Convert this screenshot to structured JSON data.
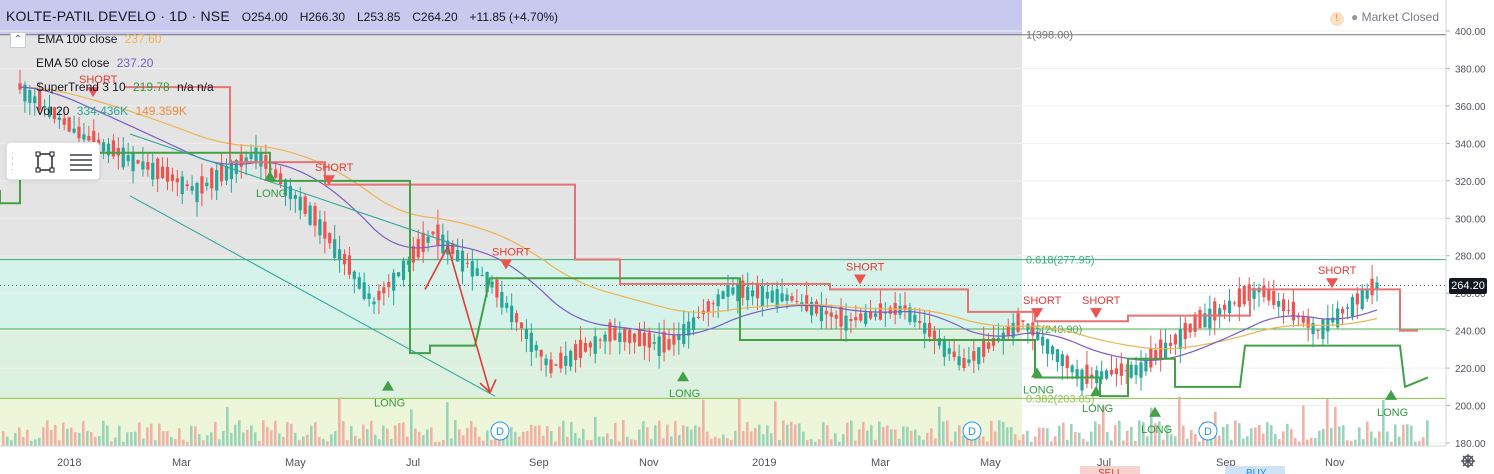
{
  "header": {
    "symbol": "KOLTE-PATIL DEVELO · 1D · NSE",
    "open": "O254.00",
    "high": "H266.30",
    "low": "L253.85",
    "close": "C264.20",
    "change": "+11.85 (+4.70%)"
  },
  "market_status": "Market Closed",
  "legend": [
    {
      "name": "EMA 100 close",
      "value": "237.60",
      "color": "#f0b351"
    },
    {
      "name": "EMA 50 close",
      "value": "237.20",
      "color": "#7b5cc9"
    },
    {
      "name": "SuperTrend 3 10",
      "value": "219.78",
      "extra": "n/a n/a",
      "color": "#2e9c3f"
    },
    {
      "name": "Vol 20",
      "value": "334.436K",
      "extra": "149.359K",
      "color": "#26a69a",
      "extra_color": "#ef8a3a"
    }
  ],
  "current_price": "264.20",
  "chart_data": {
    "type": "candlestick",
    "symbol": "KOLTE-PATIL DEVELO",
    "interval": "1D",
    "exchange": "NSE",
    "y_axis": {
      "min": 180,
      "max": 400,
      "ticks": [
        180,
        200,
        220,
        240,
        260,
        280,
        300,
        320,
        340,
        360,
        380,
        400
      ]
    },
    "x_axis_labels": [
      "2018",
      "Mar",
      "May",
      "Jul",
      "Sep",
      "Nov",
      "2019",
      "Mar",
      "May",
      "Jul",
      "Sep",
      "Nov"
    ],
    "fib_levels": [
      {
        "label": "1(398.00)",
        "price": 398.0
      },
      {
        "label": "0.618(277.95)",
        "price": 277.95
      },
      {
        "label": "0.5(240.90)",
        "price": 240.9
      },
      {
        "label": "0.382(203.85)",
        "price": 203.85
      }
    ],
    "close_series": [
      [
        "2018-01",
        370
      ],
      [
        "2018-02",
        345
      ],
      [
        "2018-03",
        330
      ],
      [
        "2018-04",
        315
      ],
      [
        "2018-05",
        335
      ],
      [
        "2018-06",
        300
      ],
      [
        "2018-07",
        255
      ],
      [
        "2018-08",
        292
      ],
      [
        "2018-09",
        265
      ],
      [
        "2018-10",
        220
      ],
      [
        "2018-11",
        238
      ],
      [
        "2018-12",
        232
      ],
      [
        "2019-01",
        262
      ],
      [
        "2019-02",
        258
      ],
      [
        "2019-03",
        245
      ],
      [
        "2019-04",
        252
      ],
      [
        "2019-05",
        222
      ],
      [
        "2019-06",
        245
      ],
      [
        "2019-07",
        215
      ],
      [
        "2019-08",
        220
      ],
      [
        "2019-09",
        245
      ],
      [
        "2019-10",
        262
      ],
      [
        "2019-11",
        240
      ],
      [
        "2019-12",
        264.2
      ]
    ],
    "signals": [
      {
        "type": "SHORT",
        "date": "2018-02",
        "price": 370
      },
      {
        "type": "LONG",
        "date": "2018-05",
        "price": 320
      },
      {
        "type": "SHORT",
        "date": "2018-06",
        "price": 323
      },
      {
        "type": "LONG",
        "date": "2018-07",
        "price": 208
      },
      {
        "type": "SHORT",
        "date": "2018-09",
        "price": 278
      },
      {
        "type": "LONG",
        "date": "2018-12",
        "price": 213
      },
      {
        "type": "SHORT",
        "date": "2019-03",
        "price": 270
      },
      {
        "type": "SHORT",
        "date": "2019-06",
        "price": 252
      },
      {
        "type": "LONG",
        "date": "2019-06",
        "price": 215
      },
      {
        "type": "LONG",
        "date": "2019-07",
        "price": 205
      },
      {
        "type": "SHORT",
        "date": "2019-07",
        "price": 252
      },
      {
        "type": "LONG",
        "date": "2019-08",
        "price": 194
      },
      {
        "type": "SHORT",
        "date": "2019-11",
        "price": 268
      },
      {
        "type": "LONG",
        "date": "2019-12",
        "price": 203
      }
    ],
    "dividend_markers": [
      {
        "label": "D",
        "date": "2018-09"
      },
      {
        "label": "D",
        "date": "2019-05"
      },
      {
        "label": "D",
        "date": "2019-09"
      }
    ],
    "bottom_tags": [
      "SELL",
      "BUY"
    ]
  }
}
